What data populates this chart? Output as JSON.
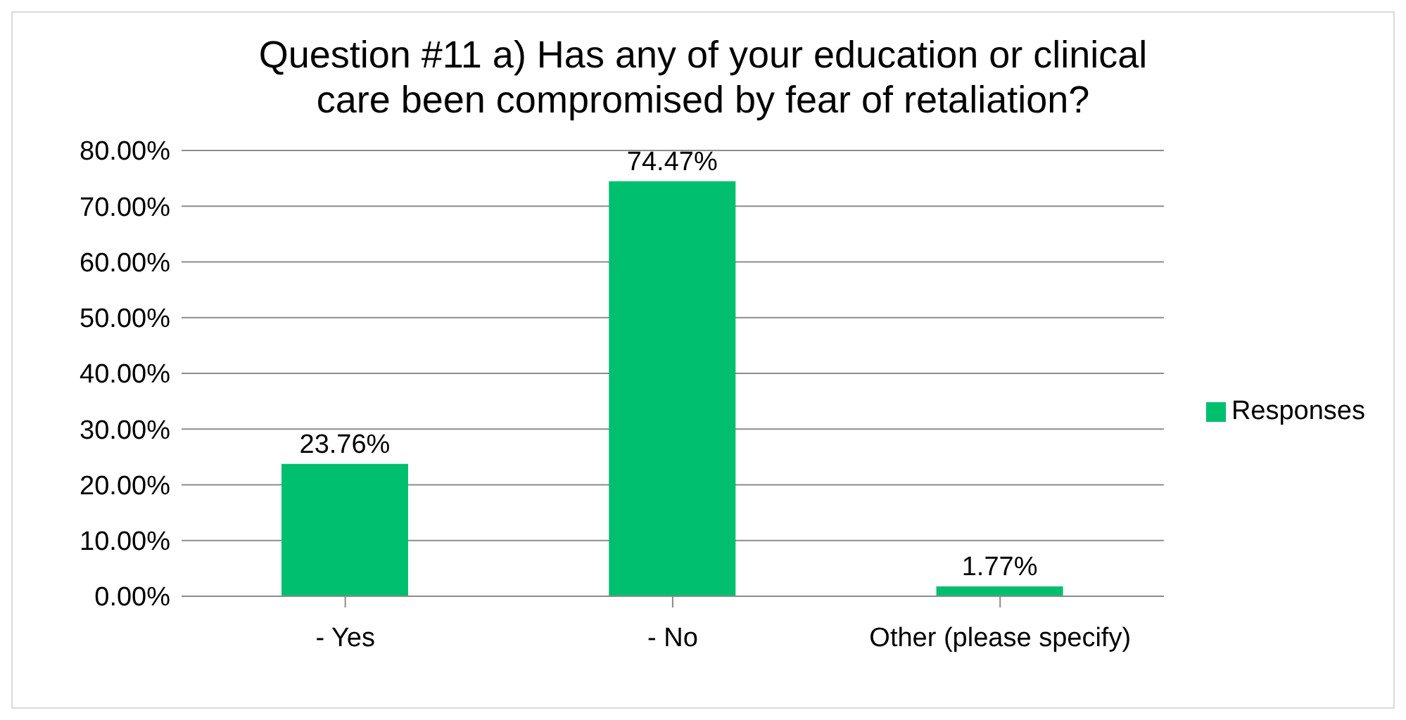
{
  "chart_data": {
    "type": "bar",
    "title": "Question #11 a) Has any of your education or clinical care been compromised by fear of retaliation?",
    "categories": [
      "- Yes",
      "- No",
      "Other (please specify)"
    ],
    "series": [
      {
        "name": "Responses",
        "color": "#00bf6f",
        "values": [
          23.76,
          74.47,
          1.77
        ],
        "value_labels": [
          "23.76%",
          "74.47%",
          "1.77%"
        ]
      }
    ],
    "ylim": [
      0,
      80
    ],
    "yticks": [
      {
        "value": 0,
        "label": "0.00%"
      },
      {
        "value": 10,
        "label": "10.00%"
      },
      {
        "value": 20,
        "label": "20.00%"
      },
      {
        "value": 30,
        "label": "30.00%"
      },
      {
        "value": 40,
        "label": "40.00%"
      },
      {
        "value": 50,
        "label": "50.00%"
      },
      {
        "value": 60,
        "label": "60.00%"
      },
      {
        "value": 70,
        "label": "70.00%"
      },
      {
        "value": 80,
        "label": "80.00%"
      }
    ],
    "grid": "y",
    "legend": "right"
  }
}
